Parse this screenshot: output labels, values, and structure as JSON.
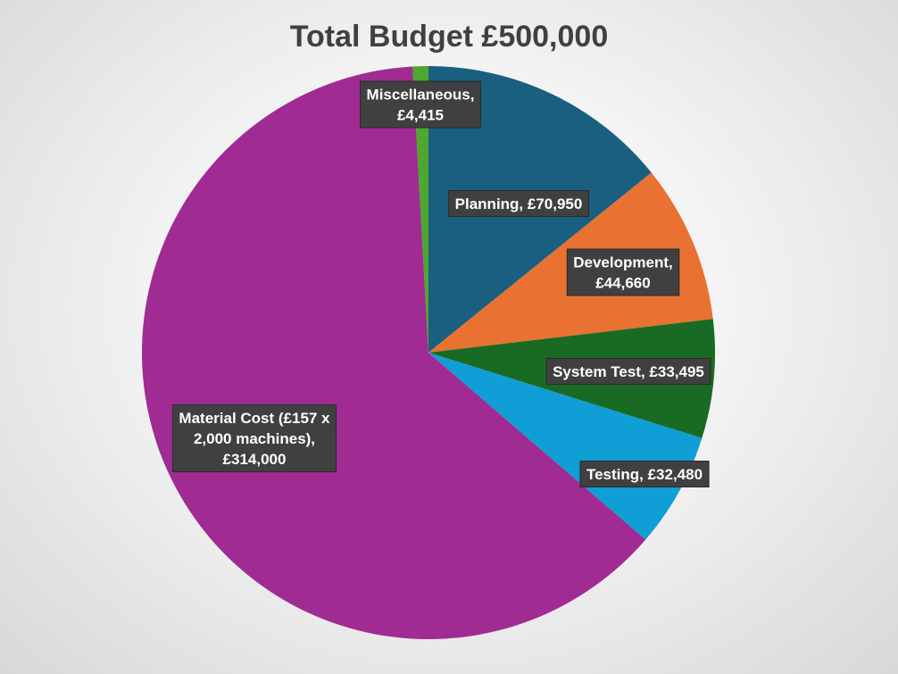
{
  "chart_data": {
    "type": "pie",
    "title": "Total Budget £500,000",
    "slices": [
      {
        "name": "Planning",
        "value": 70950,
        "color": "#1a5f80",
        "label_lines": [
          "Planning, £70,950"
        ]
      },
      {
        "name": "Development",
        "value": 44660,
        "color": "#e97132",
        "label_lines": [
          "Development,",
          "£44,660"
        ]
      },
      {
        "name": "System Test",
        "value": 33495,
        "color": "#196b24",
        "label_lines": [
          "System Test, £33,495"
        ]
      },
      {
        "name": "Testing",
        "value": 32480,
        "color": "#0f9ed5",
        "label_lines": [
          "Testing, £32,480"
        ]
      },
      {
        "name": "Material Cost (£157 x 2,000 machines)",
        "value": 314000,
        "color": "#a02b93",
        "label_lines": [
          "Material Cost (£157 x",
          "2,000 machines),",
          "£314,000"
        ]
      },
      {
        "name": "Miscellaneous",
        "value": 4415,
        "color": "#4ea72e",
        "label_lines": [
          "Miscellaneous,",
          "£4,415"
        ]
      }
    ],
    "start_angle": "12 o'clock",
    "direction": "clockwise",
    "legend": "none",
    "data_labels": "category name and value"
  }
}
